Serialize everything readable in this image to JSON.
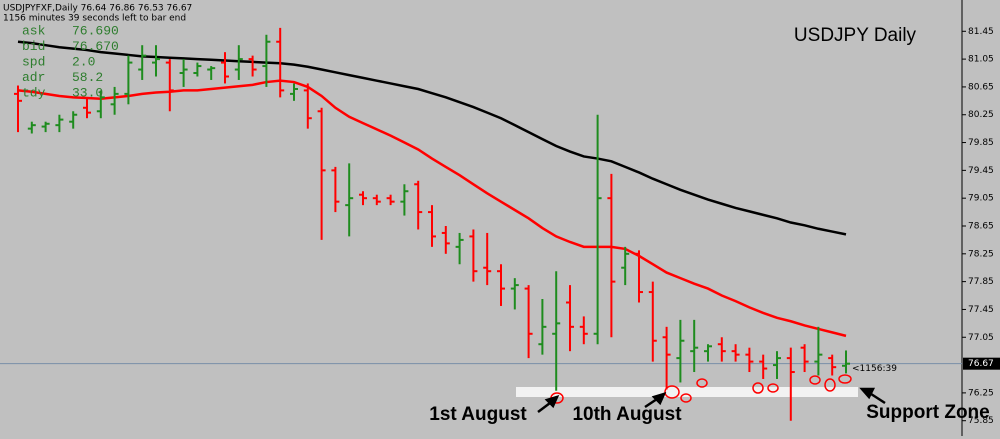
{
  "chart_data": {
    "type": "ohlc",
    "title": "USDJPY Daily",
    "header": "USDJPYFXF,Daily  76.64 76.86 76.53 76.67",
    "countdown": "1156 minutes 39 seconds left to bar end",
    "panel": [
      [
        "ask",
        "76.690"
      ],
      [
        "bid",
        "76.670"
      ],
      [
        "spd",
        "2.0"
      ],
      [
        "adr",
        "58.2"
      ],
      [
        "tdy",
        "33.0"
      ]
    ],
    "annotations": [
      "1st August",
      "10th August",
      "Support Zone"
    ],
    "last_price": 76.67,
    "timer_label": "<1156:39",
    "up_color": "#1e8c1e",
    "down_color": "#ff0000",
    "ylim": [
      75.63,
      81.9
    ],
    "yticks": [
      81.45,
      81.05,
      80.65,
      80.25,
      79.85,
      79.45,
      79.05,
      78.65,
      78.25,
      77.85,
      77.45,
      77.05,
      76.25,
      75.85
    ],
    "open": [
      80.55,
      80.05,
      80.08,
      80.1,
      80.15,
      80.35,
      80.3,
      80.4,
      80.55,
      80.9,
      81.0,
      81.0,
      80.85,
      80.85,
      80.9,
      81.0,
      80.9,
      81.05,
      80.95,
      81.3,
      80.55,
      80.6,
      80.3,
      79.45,
      78.95,
      79.1,
      79.05,
      79.05,
      79.0,
      79.25,
      78.85,
      78.55,
      78.35,
      78.5,
      78.05,
      78.0,
      77.75,
      77.75,
      76.95,
      77.1,
      77.55,
      77.2,
      77.1,
      79.05,
      78.05,
      78.25,
      77.7,
      77.05,
      76.75,
      76.85,
      76.85,
      76.95,
      76.85,
      76.8,
      76.7,
      76.65,
      76.75,
      76.9,
      76.7,
      76.75,
      76.64
    ],
    "high": [
      80.67,
      80.15,
      80.15,
      80.25,
      80.3,
      80.5,
      80.6,
      80.65,
      81.1,
      81.25,
      81.25,
      81.05,
      81.05,
      81.0,
      80.95,
      81.15,
      81.25,
      81.1,
      81.4,
      81.5,
      80.7,
      80.7,
      80.35,
      79.5,
      79.55,
      79.15,
      79.1,
      79.1,
      79.25,
      79.3,
      78.95,
      78.65,
      78.55,
      78.6,
      78.55,
      78.1,
      77.9,
      77.8,
      77.6,
      78.0,
      77.8,
      77.35,
      80.25,
      79.4,
      78.35,
      78.3,
      77.85,
      77.2,
      77.3,
      77.3,
      76.95,
      77.05,
      76.95,
      76.9,
      76.8,
      76.85,
      76.9,
      76.95,
      77.2,
      76.8,
      76.86
    ],
    "low": [
      80.0,
      79.98,
      80.0,
      80.0,
      80.05,
      80.2,
      80.2,
      80.25,
      80.4,
      80.75,
      80.8,
      80.3,
      80.65,
      80.8,
      80.75,
      80.7,
      80.75,
      80.8,
      80.65,
      80.5,
      80.45,
      80.05,
      78.45,
      78.85,
      78.5,
      78.95,
      78.95,
      78.95,
      78.8,
      78.6,
      78.35,
      78.25,
      78.1,
      77.85,
      77.8,
      77.5,
      77.45,
      76.75,
      76.8,
      76.28,
      76.85,
      76.95,
      76.95,
      77.05,
      77.8,
      77.55,
      76.7,
      76.3,
      76.4,
      76.55,
      76.7,
      76.7,
      76.7,
      76.55,
      76.45,
      76.45,
      75.85,
      76.55,
      76.5,
      76.5,
      76.53
    ],
    "close": [
      80.45,
      80.1,
      80.12,
      80.18,
      80.25,
      80.28,
      80.5,
      80.55,
      81.0,
      81.1,
      81.05,
      80.6,
      80.9,
      80.95,
      80.92,
      80.8,
      81.05,
      80.9,
      81.3,
      80.6,
      80.62,
      80.2,
      79.45,
      79.0,
      79.05,
      79.05,
      79.0,
      79.0,
      79.15,
      78.85,
      78.5,
      78.4,
      78.45,
      78.0,
      78.0,
      77.75,
      77.8,
      77.1,
      77.2,
      77.25,
      77.2,
      77.1,
      79.05,
      77.85,
      78.25,
      77.7,
      77.0,
      76.8,
      77.0,
      76.9,
      76.92,
      76.85,
      76.8,
      76.7,
      76.6,
      76.75,
      76.55,
      76.7,
      76.8,
      76.62,
      76.67
    ],
    "series": [
      {
        "color": "#000000",
        "values": [
          81.3,
          81.28,
          81.25,
          81.22,
          81.2,
          81.18,
          81.15,
          81.13,
          81.11,
          81.09,
          81.08,
          81.07,
          81.06,
          81.05,
          81.04,
          81.03,
          81.02,
          81.01,
          81.0,
          80.99,
          80.97,
          80.94,
          80.9,
          80.86,
          80.82,
          80.78,
          80.74,
          80.7,
          80.66,
          80.62,
          80.56,
          80.5,
          80.43,
          80.36,
          80.28,
          80.2,
          80.1,
          80.0,
          79.9,
          79.8,
          79.72,
          79.65,
          79.62,
          79.58,
          79.5,
          79.42,
          79.33,
          79.25,
          79.17,
          79.1,
          79.03,
          78.97,
          78.91,
          78.86,
          78.81,
          78.76,
          78.7,
          78.66,
          78.61,
          78.57,
          78.53
        ]
      },
      {
        "color": "#ff0000",
        "values": [
          80.6,
          80.58,
          80.55,
          80.52,
          80.5,
          80.49,
          80.48,
          80.5,
          80.52,
          80.55,
          80.57,
          80.58,
          80.6,
          80.6,
          80.62,
          80.64,
          80.66,
          80.68,
          80.72,
          80.74,
          80.72,
          80.65,
          80.52,
          80.35,
          80.22,
          80.13,
          80.04,
          79.95,
          79.85,
          79.75,
          79.62,
          79.5,
          79.38,
          79.25,
          79.12,
          79.0,
          78.88,
          78.76,
          78.62,
          78.5,
          78.42,
          78.35,
          78.35,
          78.35,
          78.32,
          78.22,
          78.1,
          77.98,
          77.9,
          77.82,
          77.75,
          77.65,
          77.57,
          77.48,
          77.4,
          77.33,
          77.28,
          77.22,
          77.17,
          77.12,
          77.07
        ]
      }
    ]
  }
}
